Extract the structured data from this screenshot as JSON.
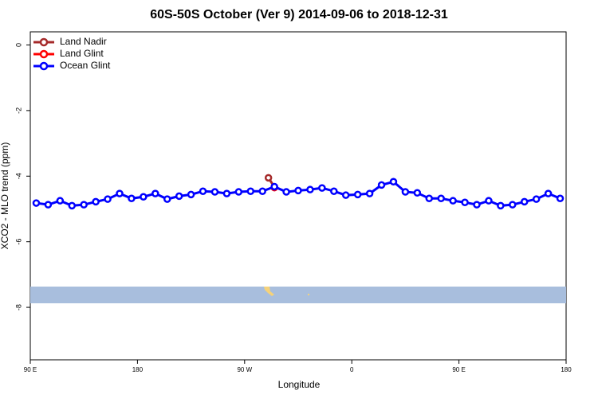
{
  "chart_data": {
    "type": "line",
    "title": "60S-50S October (Ver 9)   2014-09-06 to 2018-12-31",
    "x_label": "Longitude",
    "y_label": "XCO2 - MLO trend (ppm)",
    "xlim": [
      90,
      540
    ],
    "xticks": [
      {
        "value": 90,
        "label": "90 E"
      },
      {
        "value": 180,
        "label": "180"
      },
      {
        "value": 270,
        "label": "90 W"
      },
      {
        "value": 360,
        "label": "0"
      },
      {
        "value": 450,
        "label": "90 E"
      },
      {
        "value": 540,
        "label": "180"
      }
    ],
    "ylim": [
      -9.6,
      0.4
    ],
    "yticks": [
      0,
      -2,
      -4,
      -6,
      -8
    ],
    "legend": "top-left",
    "series": [
      {
        "name": "Land Nadir",
        "color": "#a52a2a",
        "x": [
          290,
          295
        ],
        "values": [
          -4.05,
          -4.33
        ]
      },
      {
        "name": "Land Glint",
        "color": "#ff0000",
        "x": [
          295
        ],
        "values": [
          -4.35
        ]
      },
      {
        "name": "Ocean Glint",
        "color": "#0000ff",
        "x": [
          95,
          105,
          115,
          125,
          135,
          145,
          155,
          165,
          175,
          185,
          195,
          205,
          215,
          225,
          235,
          245,
          255,
          265,
          275,
          285,
          295,
          305,
          315,
          325,
          335,
          345,
          355,
          365,
          375,
          385,
          395,
          405,
          415,
          425,
          435,
          445,
          455,
          465,
          475,
          485,
          495,
          505,
          515,
          525,
          535
        ],
        "values": [
          -4.82,
          -4.87,
          -4.75,
          -4.9,
          -4.87,
          -4.78,
          -4.7,
          -4.53,
          -4.68,
          -4.63,
          -4.53,
          -4.7,
          -4.61,
          -4.56,
          -4.46,
          -4.48,
          -4.53,
          -4.48,
          -4.46,
          -4.46,
          -4.32,
          -4.48,
          -4.44,
          -4.41,
          -4.36,
          -4.46,
          -4.58,
          -4.56,
          -4.53,
          -4.27,
          -4.17,
          -4.48,
          -4.51,
          -4.68,
          -4.68,
          -4.75,
          -4.8,
          -4.87,
          -4.75,
          -4.9,
          -4.87,
          -4.78,
          -4.7,
          -4.53,
          -4.68
        ]
      }
    ]
  }
}
